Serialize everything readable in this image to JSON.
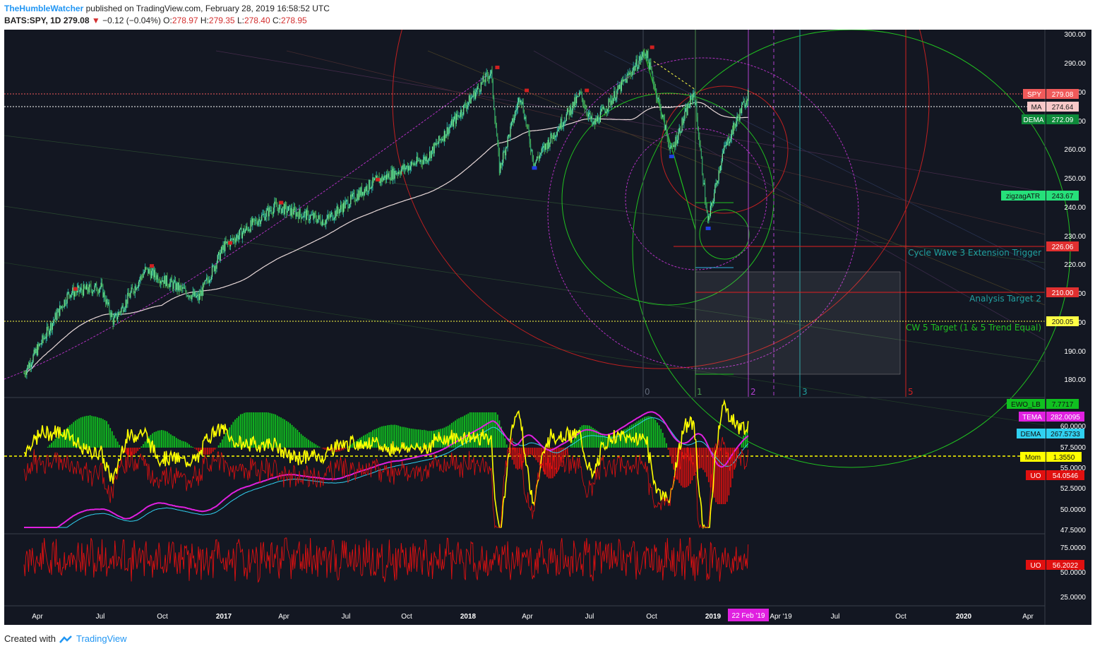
{
  "header": {
    "author": "TheHumbleWatcher",
    "published": "published on TradingView.com, February 28, 2019 16:58:52 UTC",
    "symbol": "BATS:SPY, 1D",
    "last": "279.08",
    "change_arrow": "▼",
    "change": "−0.12 (−0.04%)",
    "o_label": "O:",
    "o": "278.97",
    "h_label": "H:",
    "h": "279.35",
    "l_label": "L:",
    "l": "278.40",
    "c_label": "C:",
    "c": "278.95"
  },
  "footer": {
    "created": "Created with",
    "brand": "TradingView"
  },
  "colors": {
    "background": "#131722",
    "candle": "#26a69a",
    "ma": "#e8d8d8",
    "spy_tag": "#f05a5a",
    "ma_tag": "#f8c8c8",
    "dema_tag": "#0e8a3a",
    "zigzag_tag": "#26e07a",
    "level_tag": "#e03030",
    "level_200": "#ffff44",
    "ewo_up": "#10c020",
    "ewo_down": "#d01010",
    "tema": "#e020e0",
    "dema_lower": "#30d0f0",
    "momentum": "#ffff00",
    "uo": "#e01010"
  },
  "price_axis": {
    "ticks": [
      "300.00",
      "290.00",
      "280.00",
      "270.00",
      "260.00",
      "250.00",
      "240.00",
      "230.00",
      "220.00",
      "210.00",
      "200.00",
      "190.00",
      "180.00"
    ],
    "tags": [
      {
        "name": "SPY",
        "value": "279.08"
      },
      {
        "name": "MA",
        "value": "274.64"
      },
      {
        "name": "DEMA",
        "value": "272.09"
      },
      {
        "name": "zigzagATR",
        "value": "243.67"
      },
      {
        "name": "",
        "value": "226.06"
      },
      {
        "name": "",
        "value": "210.00"
      },
      {
        "name": "",
        "value": "200.05"
      }
    ]
  },
  "annotations": {
    "cycle_wave": "Cycle Wave 3 Extension Trigger",
    "analysis_target": "Analysis Target 2",
    "cw5_target": "CW 5 Target (1 & 5 Trend Equal)",
    "fib_labels": [
      "0",
      "1",
      "2",
      "3",
      "5"
    ]
  },
  "osc_axis": {
    "ticks": [
      "60.0000",
      "57.5000",
      "55.0000",
      "52.5000",
      "50.0000",
      "47.5000"
    ],
    "tags": [
      {
        "name": "EWO_LB",
        "value": "7.7717"
      },
      {
        "name": "TEMA",
        "value": "282.0095"
      },
      {
        "name": "DEMA",
        "value": "267.5733"
      },
      {
        "name": "Mom",
        "value": "1.3550"
      },
      {
        "name": "UO",
        "value": "54.0546"
      }
    ]
  },
  "uo_axis": {
    "ticks": [
      "75.0000",
      "50.0000",
      "25.0000"
    ],
    "tags": [
      {
        "name": "UO",
        "value": "56.2022"
      }
    ]
  },
  "time_axis": {
    "labels": [
      "Apr",
      "Jul",
      "Oct",
      "2017",
      "Apr",
      "Jul",
      "Oct",
      "2018",
      "Apr",
      "Jul",
      "Oct",
      "2019",
      "Apr '19",
      "Jul",
      "Oct",
      "2020",
      "Apr"
    ],
    "cursor": "22 Feb '19"
  },
  "chart_data": {
    "type": "line",
    "title": "",
    "xlabel": "",
    "ylabel": "",
    "series": [
      {
        "name": "SPY",
        "x": [
          "2016-02-11",
          "2016-04-20",
          "2016-06-08",
          "2016-06-27",
          "2016-08-15",
          "2016-11-04",
          "2016-12-13",
          "2017-03-01",
          "2017-05-17",
          "2017-07-27",
          "2017-10-20",
          "2018-01-26",
          "2018-02-08",
          "2018-03-12",
          "2018-04-02",
          "2018-06-12",
          "2018-07-01",
          "2018-09-20",
          "2018-10-29",
          "2018-12-03",
          "2018-12-24",
          "2019-01-15",
          "2019-02-25"
        ],
        "values": [
          182,
          210,
          212,
          200,
          218,
          208,
          226,
          240,
          235,
          248,
          257,
          287,
          253,
          279,
          255,
          279,
          268,
          294,
          259,
          280,
          234,
          258,
          280
        ]
      }
    ],
    "ylim": [
      176,
      301
    ],
    "price_levels": [
      279.08,
      274.64,
      272.09,
      243.67,
      226.06,
      210.0,
      200.05
    ]
  }
}
